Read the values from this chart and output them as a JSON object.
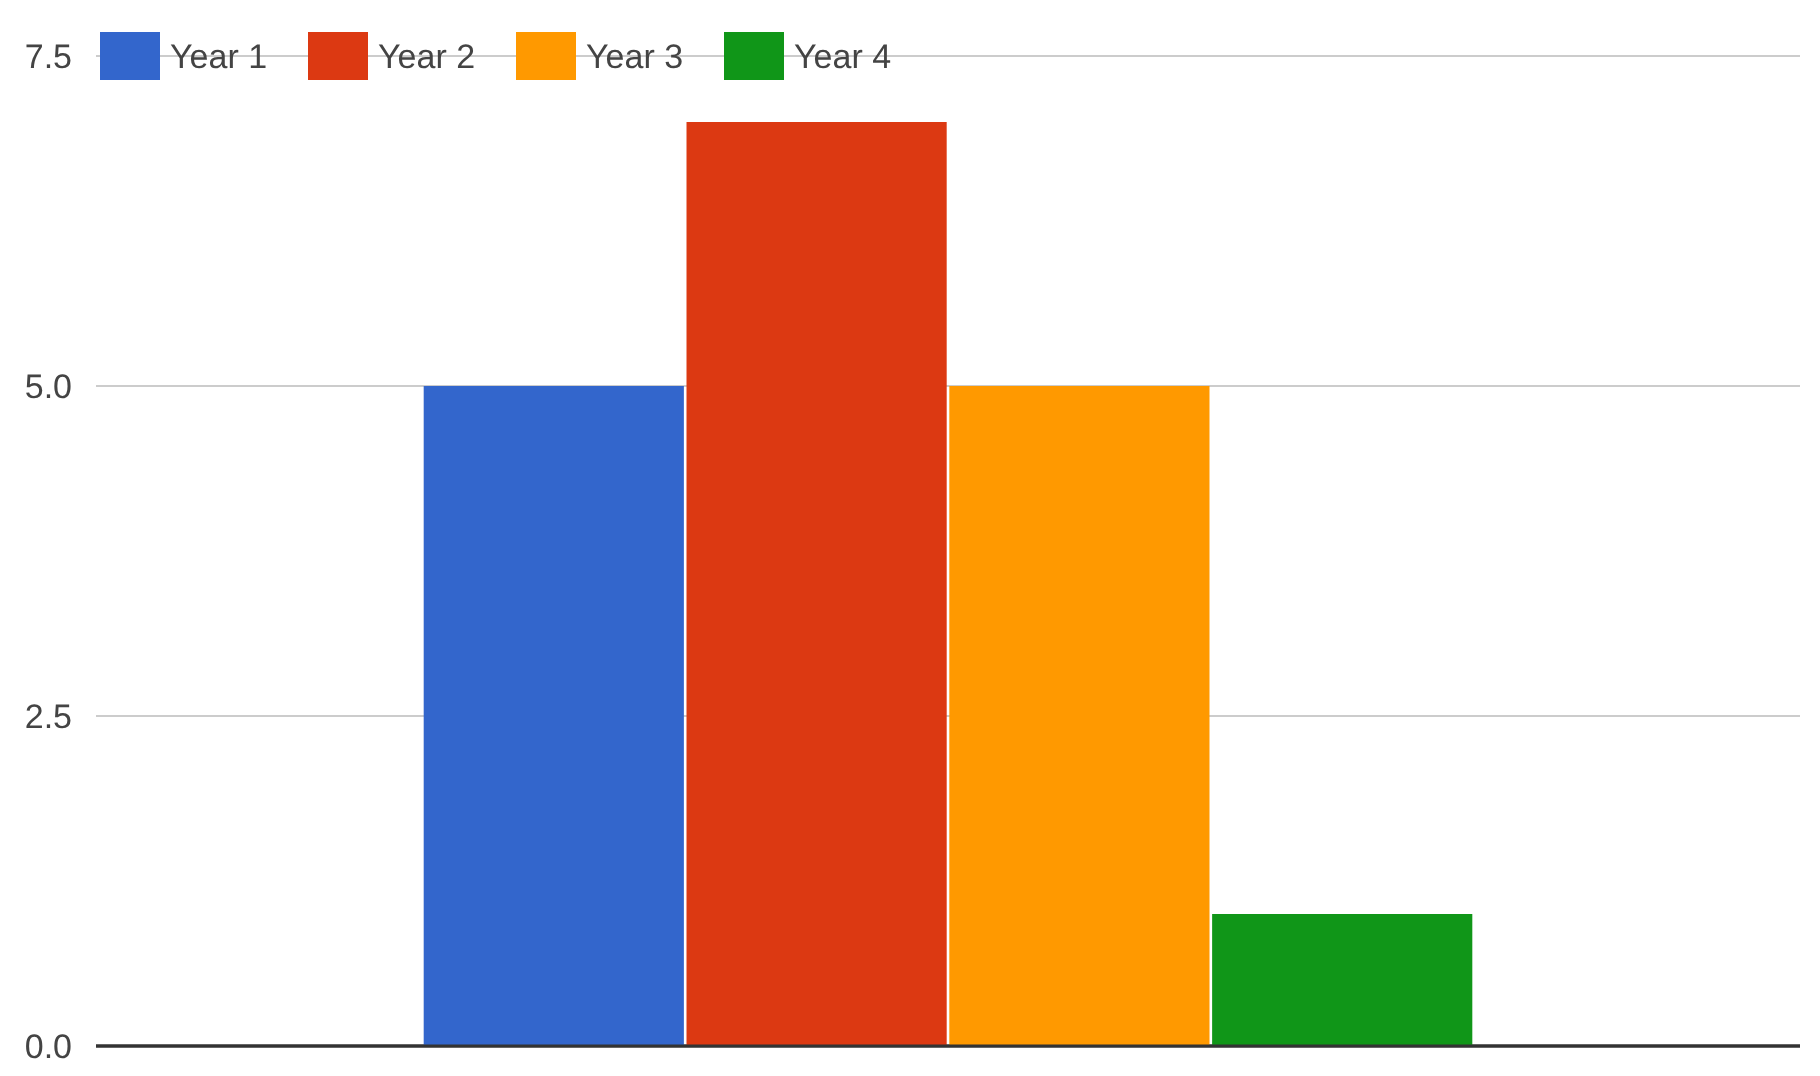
{
  "chart_data": {
    "type": "bar",
    "categories": [
      null
    ],
    "series": [
      {
        "name": "Year 1",
        "color": "#3366cc",
        "values": [
          5
        ]
      },
      {
        "name": "Year 2",
        "color": "#dc3912",
        "values": [
          7
        ]
      },
      {
        "name": "Year 3",
        "color": "#ff9900",
        "values": [
          5
        ]
      },
      {
        "name": "Year 4",
        "color": "#109618",
        "values": [
          1
        ]
      }
    ],
    "ylim": [
      0,
      7.5
    ],
    "yticks": [
      {
        "value": 0,
        "label": "0.0"
      },
      {
        "value": 2.5,
        "label": "2.5"
      },
      {
        "value": 5,
        "label": "5.0"
      },
      {
        "value": 7.5,
        "label": "7.5"
      }
    ],
    "grid": "y",
    "legend": "top left"
  }
}
